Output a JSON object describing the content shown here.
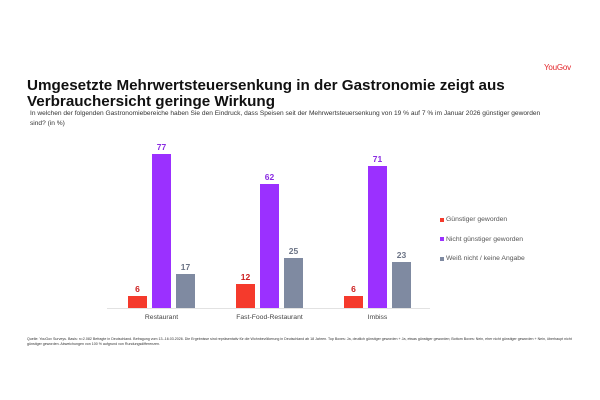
{
  "brand": {
    "logo_text": "YouGov",
    "color": "#e3262b"
  },
  "header": {
    "title": "Umgesetzte Mehrwertsteuersenkung in der Gastronomie zeigt aus Verbrauchersicht geringe Wirkung",
    "subtitle": "In welchen der folgenden Gastronomiebereiche haben Sie den Eindruck, dass Speisen seit der Mehrwertsteuersenkung von 19 % auf 7 % im Januar 2026 günstiger geworden sind? (in %)"
  },
  "footer": {
    "source": "Quelle: YouGov Surveys. Basis: n=2.082 Befragte in Deutschland. Befragung vom 13.-16.03.2026. Die Ergebnisse sind repräsentativ für die Wohnbevölkerung in Deutschland ab 18 Jahren. Top Boxes: Ja, deutlich günstiger geworden + Ja, etwas günstiger geworden; Bottom Boxes: Nein, eher nicht günstiger geworden + Nein, überhaupt nicht günstiger geworden. Abweichungen von 100 % aufgrund von Rundungsdifferenzen."
  },
  "chart_data": {
    "type": "bar",
    "title": "Umgesetzte Mehrwertsteuersenkung in der Gastronomie zeigt aus Verbrauchersicht geringe Wirkung",
    "xlabel": "",
    "ylabel": "in %",
    "ylim": [
      0,
      80
    ],
    "grid": false,
    "legend_position": "right",
    "categories": [
      "Restaurant",
      "Fast-Food-Restaurant",
      "Imbiss"
    ],
    "series": [
      {
        "name": "Günstiger geworden",
        "values": [
          6,
          12,
          6
        ],
        "color": "#f53a2c",
        "label_color": "#cc1c1c"
      },
      {
        "name": "Nicht günstiger geworden",
        "values": [
          77,
          62,
          71
        ],
        "color": "#9b30ff",
        "label_color": "#8a2be2"
      },
      {
        "name": "Weiß nicht / keine Angabe",
        "values": [
          17,
          25,
          23
        ],
        "color": "#7f8aa1",
        "label_color": "#6b7385"
      }
    ]
  }
}
